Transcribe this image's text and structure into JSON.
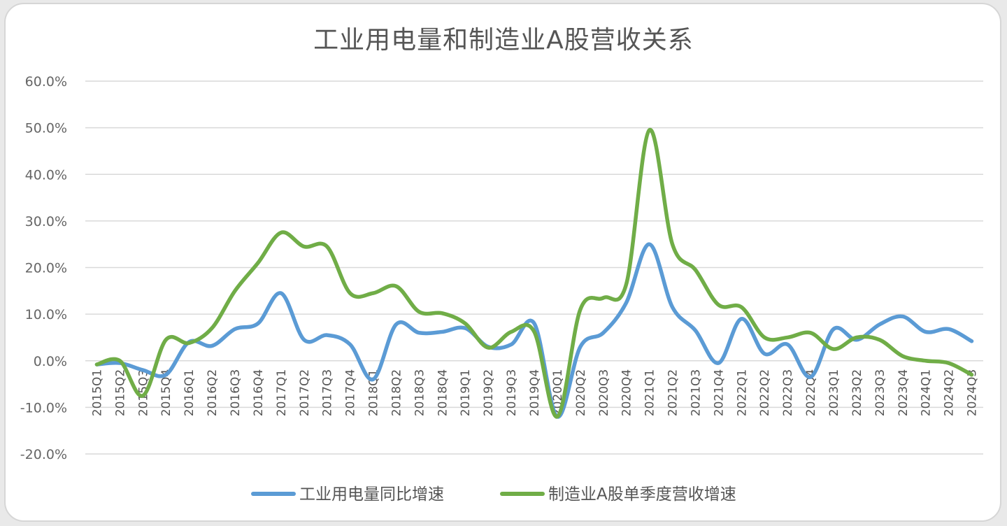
{
  "chart_data": {
    "type": "line",
    "title": "工业用电量和制造业A股营收关系",
    "xlabel": "",
    "ylabel": "",
    "ylim": [
      -20,
      60
    ],
    "yticks": [
      60,
      50,
      40,
      30,
      20,
      10,
      0,
      -10,
      -20
    ],
    "ytick_labels": [
      "60.0%",
      "50.0%",
      "40.0%",
      "30.0%",
      "20.0%",
      "10.0%",
      "0.0%",
      "-10.0%",
      "-20.0%"
    ],
    "grid": true,
    "legend_position": "bottom",
    "categories": [
      "2015Q1",
      "2015Q2",
      "2015Q3",
      "2015Q4",
      "2016Q1",
      "2016Q2",
      "2016Q3",
      "2016Q4",
      "2017Q1",
      "2017Q2",
      "2017Q3",
      "2017Q4",
      "2018Q1",
      "2018Q2",
      "2018Q3",
      "2018Q4",
      "2019Q1",
      "2019Q2",
      "2019Q3",
      "2019Q4",
      "2020Q1",
      "2020Q2",
      "2020Q3",
      "2020Q4",
      "2021Q1",
      "2021Q2",
      "2021Q3",
      "2021Q4",
      "2022Q1",
      "2022Q2",
      "2022Q3",
      "2022Q4",
      "2023Q1",
      "2023Q2",
      "2023Q3",
      "2023Q4",
      "2024Q1",
      "2024Q2",
      "2024Q3"
    ],
    "series": [
      {
        "name": "工业用电量同比增速",
        "color": "#5b9bd5",
        "values": [
          -0.8,
          -0.5,
          -2.0,
          -3.0,
          4.0,
          3.2,
          6.8,
          8.0,
          14.5,
          4.5,
          5.5,
          3.5,
          -4.0,
          7.8,
          6.0,
          6.2,
          7.0,
          3.0,
          3.5,
          8.0,
          -12.0,
          3.0,
          6.0,
          12.5,
          25.0,
          11.5,
          6.5,
          -0.5,
          9.0,
          1.5,
          3.5,
          -3.5,
          6.8,
          4.5,
          7.8,
          9.5,
          6.2,
          6.8,
          4.2
        ]
      },
      {
        "name": "制造业A股单季度营收增速",
        "color": "#70ad47",
        "values": [
          -0.8,
          0.0,
          -7.5,
          4.5,
          3.8,
          7.0,
          15.0,
          21.0,
          27.5,
          24.5,
          24.5,
          14.5,
          14.5,
          16.0,
          10.5,
          10.2,
          8.0,
          2.8,
          6.2,
          6.2,
          -12.0,
          11.0,
          13.5,
          16.5,
          49.5,
          25.0,
          19.5,
          12.0,
          11.5,
          5.0,
          5.0,
          6.0,
          2.5,
          5.0,
          4.5,
          1.0,
          0.0,
          -0.5,
          -3.0
        ]
      }
    ]
  }
}
